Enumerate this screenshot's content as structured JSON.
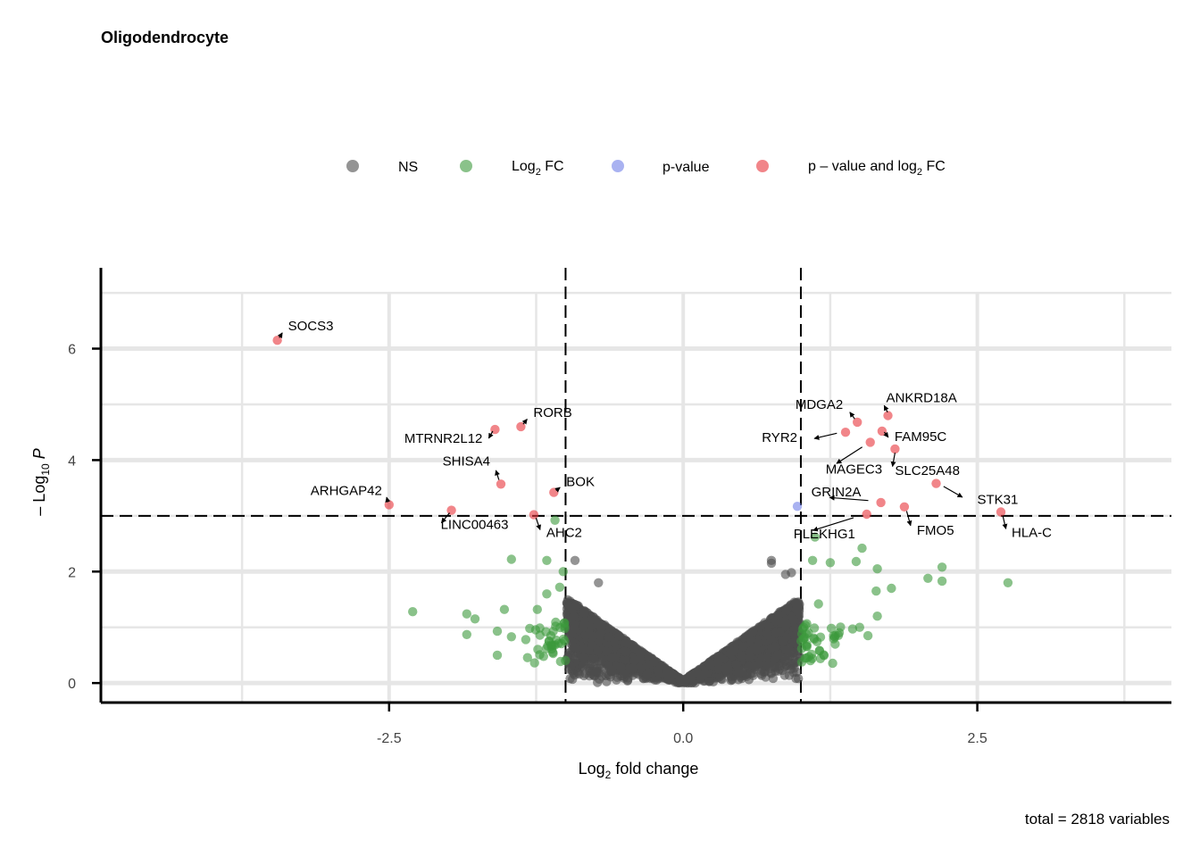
{
  "chart_data": {
    "type": "scatter",
    "title": "Oligodendrocyte",
    "caption": "total = 2818 variables",
    "xlabel": {
      "pre": "Log",
      "sub": "2",
      "post": " fold change"
    },
    "ylabel": {
      "pre": "– Log",
      "sub": "10",
      "post": " P"
    },
    "xlim": [
      -4.95,
      4.15
    ],
    "ylim": [
      -0.35,
      7.45
    ],
    "x_ticks": [
      -2.5,
      0.0,
      2.5
    ],
    "x_tick_labels": [
      "-2.5",
      "0.0",
      "2.5"
    ],
    "y_ticks": [
      0,
      2,
      4,
      6
    ],
    "y_tick_labels": [
      "0",
      "2",
      "4",
      "6"
    ],
    "cutoffs": {
      "log2fc": [
        -1,
        1
      ],
      "neg_log10_p": 3
    },
    "grid": true,
    "legend": {
      "position": "top",
      "items": [
        {
          "key": "NS",
          "label": "NS",
          "color": "#4d4d4d"
        },
        {
          "key": "FC",
          "label": {
            "pre": "Log",
            "sub": "2",
            "post": " FC"
          },
          "color": "#3c9a3c"
        },
        {
          "key": "P",
          "label": "p-value",
          "color": "#6f7fe8"
        },
        {
          "key": "BOTH",
          "label": {
            "pre": "p – value and log",
            "sub": "2",
            "post": " FC"
          },
          "color": "#e8333a"
        }
      ]
    },
    "highlighted_points": [
      {
        "gene": "SOCS3",
        "x": -3.45,
        "y": 6.15,
        "group": "BOTH"
      },
      {
        "gene": "RORB",
        "x": -1.38,
        "y": 4.6,
        "group": "BOTH"
      },
      {
        "gene": "MTRNR2L12",
        "x": -1.6,
        "y": 4.55,
        "group": "BOTH"
      },
      {
        "gene": "SHISA4",
        "x": -1.55,
        "y": 3.57,
        "group": "BOTH"
      },
      {
        "gene": "BOK",
        "x": -1.1,
        "y": 3.42,
        "group": "BOTH"
      },
      {
        "gene": "ARHGAP42",
        "x": -2.5,
        "y": 3.2,
        "group": "BOTH"
      },
      {
        "gene": "LINC00463",
        "x": -1.97,
        "y": 3.1,
        "group": "BOTH"
      },
      {
        "gene": "AHC2",
        "x": -1.27,
        "y": 3.02,
        "group": "BOTH"
      },
      {
        "gene": "MDGA2",
        "x": 1.48,
        "y": 4.68,
        "group": "BOTH"
      },
      {
        "gene": "ANKRD18A",
        "x": 1.74,
        "y": 4.8,
        "group": "BOTH"
      },
      {
        "gene": "RYR2",
        "x": 1.38,
        "y": 4.5,
        "group": "BOTH"
      },
      {
        "gene": "FAM95C",
        "x": 1.69,
        "y": 4.52,
        "group": "BOTH"
      },
      {
        "gene": "MAGEC3",
        "x": 1.59,
        "y": 4.32,
        "group": "BOTH"
      },
      {
        "gene": "SLC25A48",
        "x": 1.8,
        "y": 4.2,
        "group": "BOTH"
      },
      {
        "gene": "STK31",
        "x": 2.15,
        "y": 3.58,
        "group": "BOTH"
      },
      {
        "gene": "GRIN2A",
        "x": 1.68,
        "y": 3.24,
        "group": "BOTH"
      },
      {
        "gene": "FMO5",
        "x": 1.88,
        "y": 3.16,
        "group": "BOTH"
      },
      {
        "gene": "PLEKHG1",
        "x": 1.56,
        "y": 3.03,
        "group": "BOTH"
      },
      {
        "gene": "HLA-C",
        "x": 2.7,
        "y": 3.07,
        "group": "BOTH"
      }
    ],
    "other_points": [
      {
        "x": 0.97,
        "y": 3.17,
        "group": "P"
      },
      {
        "x": -1.09,
        "y": 2.92,
        "group": "FC"
      },
      {
        "x": 1.12,
        "y": 2.62,
        "group": "FC"
      },
      {
        "x": 1.52,
        "y": 2.42,
        "group": "FC"
      },
      {
        "x": -1.46,
        "y": 2.22,
        "group": "FC"
      },
      {
        "x": -1.16,
        "y": 2.2,
        "group": "FC"
      },
      {
        "x": 1.25,
        "y": 2.16,
        "group": "FC"
      },
      {
        "x": 1.47,
        "y": 2.18,
        "group": "FC"
      },
      {
        "x": 1.1,
        "y": 2.2,
        "group": "FC"
      },
      {
        "x": -1.02,
        "y": 2.0,
        "group": "FC"
      },
      {
        "x": 1.65,
        "y": 2.05,
        "group": "FC"
      },
      {
        "x": 2.2,
        "y": 2.08,
        "group": "FC"
      },
      {
        "x": 2.08,
        "y": 1.88,
        "group": "FC"
      },
      {
        "x": 2.2,
        "y": 1.83,
        "group": "FC"
      },
      {
        "x": 2.76,
        "y": 1.8,
        "group": "FC"
      },
      {
        "x": 1.77,
        "y": 1.7,
        "group": "FC"
      },
      {
        "x": 1.64,
        "y": 1.65,
        "group": "FC"
      },
      {
        "x": -1.05,
        "y": 1.72,
        "group": "FC"
      },
      {
        "x": -1.16,
        "y": 1.6,
        "group": "FC"
      },
      {
        "x": 1.15,
        "y": 1.42,
        "group": "FC"
      },
      {
        "x": -2.3,
        "y": 1.28,
        "group": "FC"
      },
      {
        "x": -1.84,
        "y": 1.24,
        "group": "FC"
      },
      {
        "x": -1.77,
        "y": 1.15,
        "group": "FC"
      },
      {
        "x": -1.52,
        "y": 1.32,
        "group": "FC"
      },
      {
        "x": -1.24,
        "y": 1.32,
        "group": "FC"
      },
      {
        "x": -1.84,
        "y": 0.87,
        "group": "FC"
      },
      {
        "x": -1.58,
        "y": 0.93,
        "group": "FC"
      },
      {
        "x": -1.46,
        "y": 0.83,
        "group": "FC"
      },
      {
        "x": -1.58,
        "y": 0.5,
        "group": "FC"
      },
      {
        "x": 1.65,
        "y": 1.2,
        "group": "FC"
      },
      {
        "x": 1.44,
        "y": 0.97,
        "group": "FC"
      },
      {
        "x": 1.5,
        "y": 1.0,
        "group": "FC"
      },
      {
        "x": 1.57,
        "y": 0.85,
        "group": "FC"
      },
      {
        "x": 0.75,
        "y": 2.2,
        "group": "NS"
      },
      {
        "x": 0.75,
        "y": 2.15,
        "group": "NS"
      },
      {
        "x": 0.87,
        "y": 1.95,
        "group": "NS"
      },
      {
        "x": 0.92,
        "y": 1.98,
        "group": "NS"
      },
      {
        "x": -0.92,
        "y": 2.2,
        "group": "NS"
      },
      {
        "x": -0.72,
        "y": 1.8,
        "group": "NS"
      }
    ],
    "ns_cloud": {
      "count": 2740,
      "group": "NS"
    },
    "fc_cloud": {
      "count": 80,
      "group": "FC"
    }
  }
}
